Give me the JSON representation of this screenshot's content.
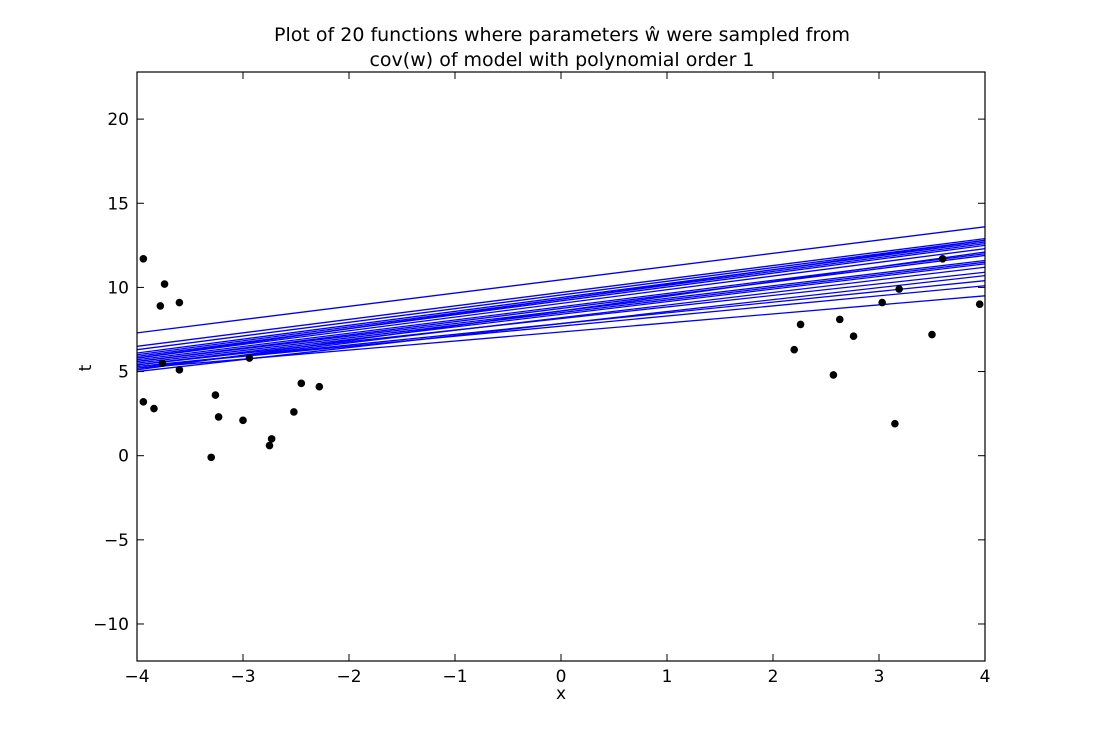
{
  "chart_data": {
    "type": "line",
    "title_line1": "Plot of 20 functions where parameters ŵ were sampled from",
    "title_line2": "cov(w) of model with polynomial order 1",
    "xlabel": "x",
    "ylabel": "t",
    "xlim": [
      -4,
      4
    ],
    "ylim": [
      -12.2,
      22.8
    ],
    "xticks": [
      -4,
      -3,
      -2,
      -1,
      0,
      1,
      2,
      3,
      4
    ],
    "yticks": [
      -10,
      -5,
      0,
      5,
      10,
      15,
      20
    ],
    "grid": false,
    "line_color": "#0000ff",
    "point_color": "#000000",
    "lines": [
      {
        "y_at_xmin": 7.3,
        "y_at_xmax": 13.6
      },
      {
        "y_at_xmin": 6.5,
        "y_at_xmax": 12.9
      },
      {
        "y_at_xmin": 6.3,
        "y_at_xmax": 12.8
      },
      {
        "y_at_xmin": 6.1,
        "y_at_xmax": 12.7
      },
      {
        "y_at_xmin": 6.0,
        "y_at_xmax": 12.6
      },
      {
        "y_at_xmin": 5.9,
        "y_at_xmax": 12.5
      },
      {
        "y_at_xmin": 5.8,
        "y_at_xmax": 12.8
      },
      {
        "y_at_xmin": 5.8,
        "y_at_xmax": 12.3
      },
      {
        "y_at_xmin": 5.7,
        "y_at_xmax": 12.0
      },
      {
        "y_at_xmin": 5.6,
        "y_at_xmax": 11.9
      },
      {
        "y_at_xmin": 5.6,
        "y_at_xmax": 11.6
      },
      {
        "y_at_xmin": 5.5,
        "y_at_xmax": 11.5
      },
      {
        "y_at_xmin": 5.4,
        "y_at_xmax": 11.4
      },
      {
        "y_at_xmin": 5.4,
        "y_at_xmax": 10.9
      },
      {
        "y_at_xmin": 5.3,
        "y_at_xmax": 10.4
      },
      {
        "y_at_xmin": 5.3,
        "y_at_xmax": 10.1
      },
      {
        "y_at_xmin": 5.2,
        "y_at_xmax": 9.5
      },
      {
        "y_at_xmin": 5.2,
        "y_at_xmax": 11.2
      },
      {
        "y_at_xmin": 5.1,
        "y_at_xmax": 12.1
      },
      {
        "y_at_xmin": 5.0,
        "y_at_xmax": 10.7
      }
    ],
    "points": [
      {
        "x": -3.94,
        "y": 11.7
      },
      {
        "x": -3.94,
        "y": 3.2
      },
      {
        "x": -3.84,
        "y": 2.8
      },
      {
        "x": -3.78,
        "y": 8.9
      },
      {
        "x": -3.76,
        "y": 5.5
      },
      {
        "x": -3.74,
        "y": 10.2
      },
      {
        "x": -3.6,
        "y": 9.1
      },
      {
        "x": -3.6,
        "y": 5.1
      },
      {
        "x": -3.3,
        "y": -0.1
      },
      {
        "x": -3.26,
        "y": 3.6
      },
      {
        "x": -3.23,
        "y": 2.3
      },
      {
        "x": -3.0,
        "y": 2.1
      },
      {
        "x": -2.94,
        "y": 5.8
      },
      {
        "x": -2.75,
        "y": 0.6
      },
      {
        "x": -2.73,
        "y": 1.0
      },
      {
        "x": -2.52,
        "y": 2.6
      },
      {
        "x": -2.45,
        "y": 4.3
      },
      {
        "x": -2.28,
        "y": 4.1
      },
      {
        "x": 2.2,
        "y": 6.3
      },
      {
        "x": 2.26,
        "y": 7.8
      },
      {
        "x": 2.57,
        "y": 4.8
      },
      {
        "x": 2.63,
        "y": 8.1
      },
      {
        "x": 2.76,
        "y": 7.1
      },
      {
        "x": 3.03,
        "y": 9.1
      },
      {
        "x": 3.15,
        "y": 1.9
      },
      {
        "x": 3.19,
        "y": 9.9
      },
      {
        "x": 3.5,
        "y": 7.2
      },
      {
        "x": 3.6,
        "y": 11.7
      },
      {
        "x": 3.95,
        "y": 9.0
      }
    ]
  }
}
